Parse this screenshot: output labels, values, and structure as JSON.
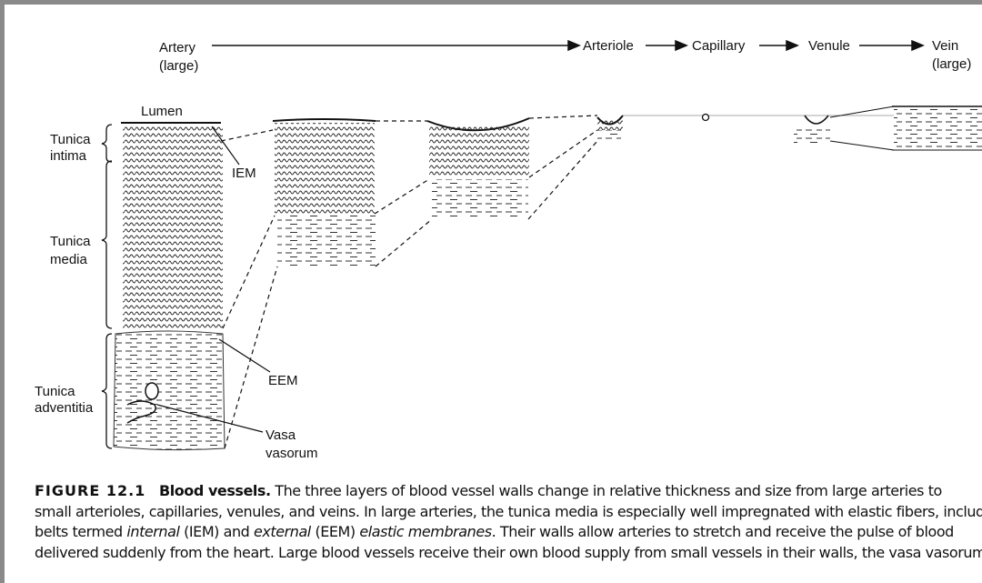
{
  "flow": {
    "artery": [
      "Artery",
      "(large)"
    ],
    "arteriole": "Arteriole",
    "capillary": "Capillary",
    "venule": "Venule",
    "vein": [
      "Vein",
      "(large)"
    ]
  },
  "labels": {
    "lumen": "Lumen",
    "intima": [
      "Tunica",
      "intima"
    ],
    "media": [
      "Tunica",
      "media"
    ],
    "adventitia": [
      "Tunica",
      "adventitia"
    ],
    "iem": "IEM",
    "eem": "EEM",
    "vasa": [
      "Vasa",
      "vasorum"
    ]
  },
  "caption": {
    "label": "FIGURE 12.1",
    "heading": "Blood vessels.",
    "line1": "The three layers of blood vessel walls change in relative thickness and size from large arteries to",
    "line2": "small arterioles, capillaries, venules, and veins. In large arteries, the tunica media is especially well impregnated with elastic fibers, including",
    "line3": [
      "belts termed ",
      "internal",
      " (IEM) and ",
      "external",
      " (EEM) ",
      "elastic membranes",
      ". Their walls allow arteries to stretch and receive the pulse of blood"
    ],
    "line4": "delivered suddenly from the heart. Large blood vessels receive their own blood supply from small vessels in their walls, the vasa vasorum"
  }
}
